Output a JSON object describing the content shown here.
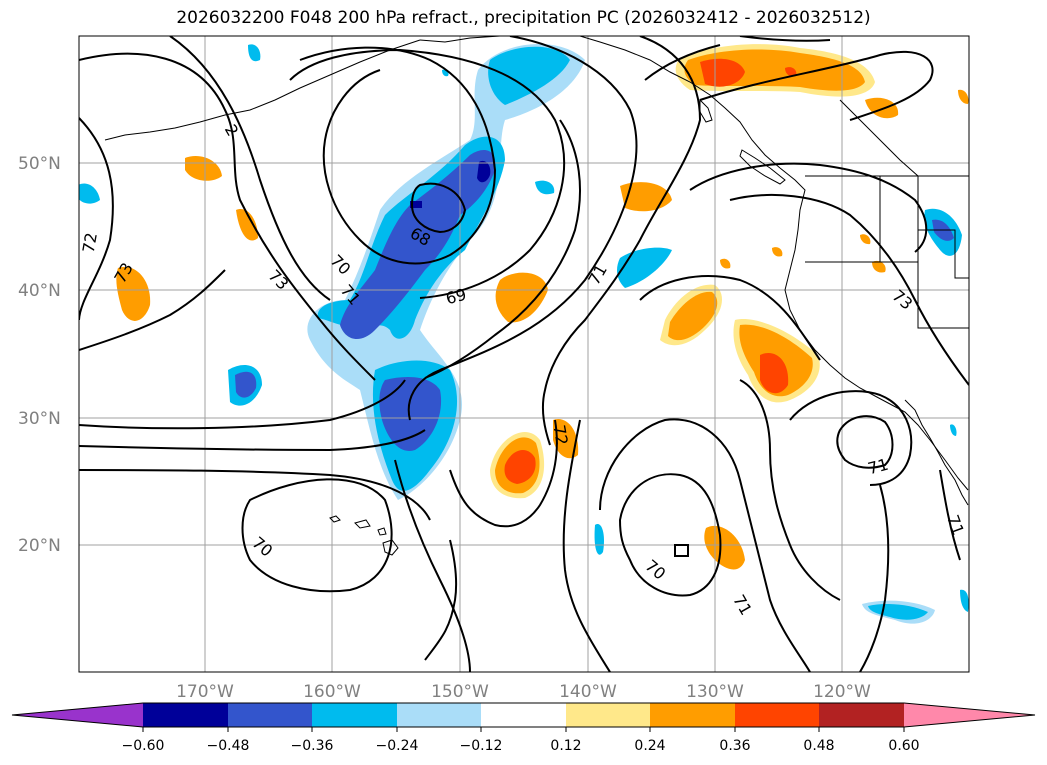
{
  "title": "2026032200 F048 200 hPa refract., precipitation PC (2026032412 - 2026032512)",
  "map": {
    "lat_labels": [
      "50°N",
      "40°N",
      "30°N",
      "20°N"
    ],
    "lon_labels": [
      "170°W",
      "160°W",
      "150°W",
      "140°W",
      "130°W",
      "120°W"
    ],
    "contour_labels": [
      "2",
      "72",
      "73",
      "70",
      "71",
      "68",
      "69",
      "71",
      "73",
      "72",
      "70",
      "70",
      "71",
      "71",
      "71"
    ]
  },
  "colorbar": {
    "colors": [
      "#9933cc",
      "#000099",
      "#3355cc",
      "#00bbee",
      "#aaddf8",
      "#ffffff",
      "#ffe88a",
      "#ff9d00",
      "#ff4400",
      "#b22222",
      "#ff88aa"
    ],
    "tick_labels": [
      "−0.60",
      "−0.48",
      "−0.36",
      "−0.24",
      "−0.12",
      "0.12",
      "0.24",
      "0.36",
      "0.48",
      "0.60"
    ]
  }
}
